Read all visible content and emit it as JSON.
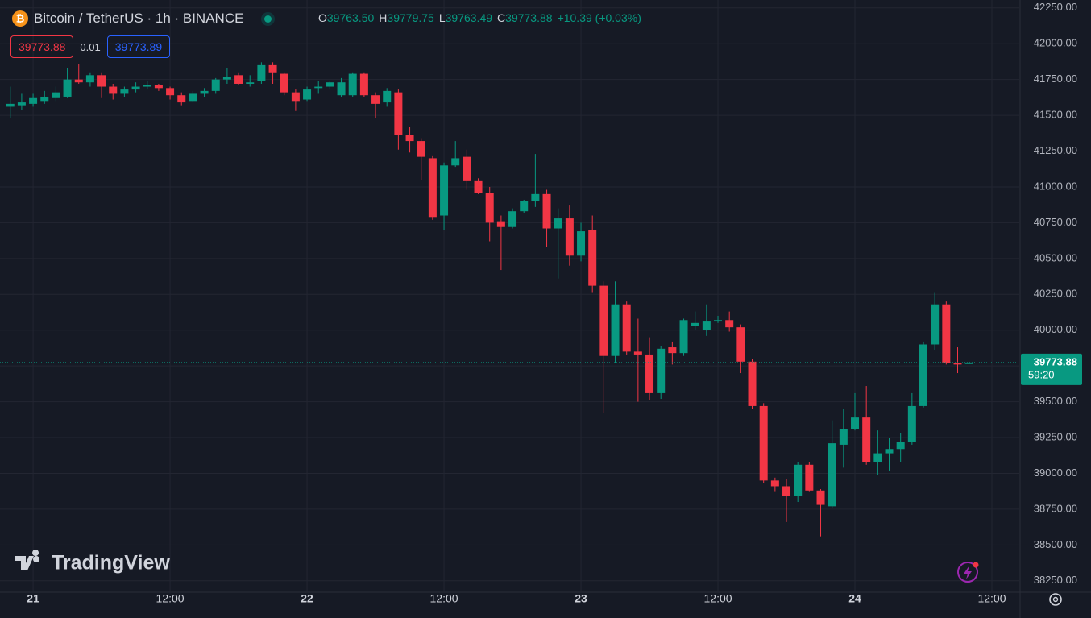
{
  "chart_data": {
    "type": "candlestick",
    "title": "Bitcoin / TetherUS · 1h · BINANCE",
    "legend_values": [
      {
        "name": "O",
        "value": 39763.5,
        "label": "39763.50"
      },
      {
        "name": "H",
        "value": 39779.75,
        "label": "39779.75"
      },
      {
        "name": "L",
        "value": 39763.49,
        "label": "39763.49"
      },
      {
        "name": "C",
        "value": 39773.88,
        "label": "39773.88"
      }
    ],
    "change": "+10.39 (+0.03%)",
    "bid": "39773.88",
    "spread": "0.01",
    "ask": "39773.89",
    "last_price": {
      "value": 39773.88,
      "label": "39773.88"
    },
    "countdown": "59:20",
    "watermark": "TradingView",
    "up_color": "#089981",
    "down_color": "#f23645",
    "grid": true,
    "xlim": [
      -2.9,
      86.4
    ],
    "xticks": [
      {
        "value": 0,
        "label": "21"
      },
      {
        "value": 12,
        "label": "12:00"
      },
      {
        "value": 24,
        "label": "22"
      },
      {
        "value": 36,
        "label": "12:00"
      },
      {
        "value": 48,
        "label": "23"
      },
      {
        "value": 60,
        "label": "12:00"
      },
      {
        "value": 72,
        "label": "24"
      },
      {
        "value": 84,
        "label": "12:00"
      }
    ],
    "ylim": [
      38170,
      42305
    ],
    "yticks": [
      {
        "value": 38250,
        "label": "38250.00"
      },
      {
        "value": 38500,
        "label": "38500.00"
      },
      {
        "value": 38750,
        "label": "38750.00"
      },
      {
        "value": 39000,
        "label": "39000.00"
      },
      {
        "value": 39250,
        "label": "39250.00"
      },
      {
        "value": 39500,
        "label": "39500.00"
      },
      {
        "value": 39750,
        "label": "39750.00"
      },
      {
        "value": 40000,
        "label": "40000.00"
      },
      {
        "value": 40250,
        "label": "40250.00"
      },
      {
        "value": 40500,
        "label": "40500.00"
      },
      {
        "value": 40750,
        "label": "40750.00"
      },
      {
        "value": 41000,
        "label": "41000.00"
      },
      {
        "value": 41250,
        "label": "41250.00"
      },
      {
        "value": 41500,
        "label": "41500.00"
      },
      {
        "value": 41750,
        "label": "41750.00"
      },
      {
        "value": 42000,
        "label": "42000.00"
      },
      {
        "value": 42250,
        "label": "42250.00"
      }
    ],
    "x": [
      -2,
      -1,
      0,
      1,
      2,
      3,
      4,
      5,
      6,
      7,
      8,
      9,
      10,
      11,
      12,
      13,
      14,
      15,
      16,
      17,
      18,
      19,
      20,
      21,
      22,
      23,
      24,
      25,
      26,
      27,
      28,
      29,
      30,
      31,
      32,
      33,
      34,
      35,
      36,
      37,
      38,
      39,
      40,
      41,
      42,
      43,
      44,
      45,
      46,
      47,
      48,
      49,
      50,
      51,
      52,
      53,
      54,
      55,
      56,
      57,
      58,
      59,
      60,
      61,
      62,
      63,
      64,
      65,
      66,
      67,
      68,
      69,
      70,
      71,
      72,
      73,
      74,
      75,
      76,
      77,
      78,
      79,
      80,
      81,
      82
    ],
    "open": [
      41560,
      41570,
      41580,
      41600,
      41620,
      41630,
      41750,
      41730,
      41780,
      41700,
      41650,
      41680,
      41700,
      41710,
      41690,
      41640,
      41600,
      41650,
      41670,
      41750,
      41780,
      41720,
      41740,
      41850,
      41790,
      41660,
      41610,
      41690,
      41700,
      41640,
      41640,
      41790,
      41640,
      41590,
      41660,
      41360,
      41320,
      41200,
      40800,
      41150,
      41210,
      41040,
      40960,
      40760,
      40720,
      40830,
      40900,
      40950,
      40710,
      40780,
      40520,
      40700,
      40310,
      39820,
      40180,
      39850,
      39830,
      39560,
      39880,
      39840,
      40030,
      40000,
      40060,
      40070,
      40020,
      39780,
      39470,
      38950,
      38910,
      38840,
      39060,
      38880,
      38770,
      39200,
      39310,
      39390,
      39080,
      39140,
      39170,
      39220,
      39470,
      39900,
      40180,
      39770,
      39763.5
    ],
    "high": [
      41700,
      41650,
      41650,
      41670,
      41700,
      41830,
      41860,
      41800,
      41800,
      41720,
      41700,
      41730,
      41740,
      41720,
      41700,
      41660,
      41670,
      41690,
      41760,
      41830,
      41800,
      41780,
      41870,
      41870,
      41800,
      41680,
      41700,
      41740,
      41740,
      41760,
      41800,
      41800,
      41660,
      41690,
      41680,
      41420,
      41340,
      41220,
      41170,
      41320,
      41260,
      41060,
      41000,
      40800,
      40850,
      40910,
      41230,
      40980,
      40850,
      40870,
      40750,
      40800,
      40340,
      40340,
      40200,
      40080,
      39950,
      39890,
      39920,
      40080,
      40130,
      40180,
      40100,
      40130,
      40040,
      39800,
      39490,
      38970,
      38960,
      39080,
      39080,
      38890,
      39370,
      39450,
      39560,
      39610,
      39300,
      39250,
      39280,
      39560,
      39920,
      40260,
      40200,
      39880,
      39779.75
    ],
    "low": [
      41480,
      41540,
      41560,
      41580,
      41600,
      41620,
      41720,
      41700,
      41620,
      41610,
      41630,
      41660,
      41680,
      41670,
      41610,
      41570,
      41590,
      41630,
      41650,
      41720,
      41710,
      41700,
      41720,
      41720,
      41640,
      41530,
      41600,
      41650,
      41680,
      41630,
      41630,
      41630,
      41480,
      41560,
      41260,
      41240,
      41050,
      40770,
      40700,
      41140,
      40980,
      40950,
      40620,
      40420,
      40710,
      40820,
      40860,
      40580,
      40360,
      40450,
      40480,
      40260,
      39420,
      39770,
      39830,
      39500,
      39510,
      39520,
      39760,
      39820,
      40000,
      39960,
      40050,
      39990,
      39700,
      39450,
      38930,
      38870,
      38660,
      38800,
      38870,
      38560,
      38760,
      39040,
      39300,
      39060,
      38990,
      39020,
      39080,
      39200,
      39460,
      39860,
      39760,
      39700,
      39763.49
    ],
    "close": [
      41580,
      41590,
      41620,
      41630,
      41660,
      41750,
      41730,
      41780,
      41700,
      41650,
      41680,
      41700,
      41710,
      41690,
      41640,
      41590,
      41650,
      41670,
      41750,
      41770,
      41720,
      41730,
      41850,
      41800,
      41660,
      41600,
      41680,
      41700,
      41730,
      41730,
      41790,
      41640,
      41580,
      41670,
      41360,
      41320,
      41210,
      40790,
      41150,
      41200,
      41040,
      40960,
      40750,
      40720,
      40830,
      40900,
      40950,
      40710,
      40780,
      40520,
      40690,
      40310,
      39820,
      40180,
      39850,
      39830,
      39560,
      39870,
      39840,
      40070,
      40050,
      40060,
      40070,
      40020,
      39780,
      39470,
      38950,
      38910,
      38840,
      39060,
      38880,
      38780,
      39210,
      39310,
      39390,
      39080,
      39140,
      39170,
      39220,
      39470,
      39900,
      40180,
      39770,
      39760,
      39773.88
    ]
  }
}
